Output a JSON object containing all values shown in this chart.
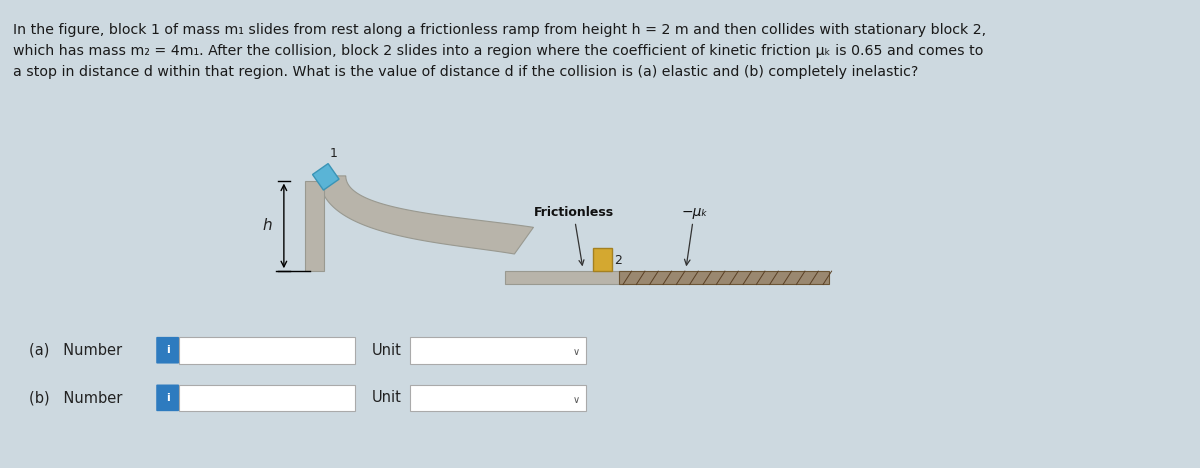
{
  "bg_color": "#cdd9e0",
  "text_color": "#1a1a1a",
  "paragraph_line1": "In the figure, block 1 of mass m₁ slides from rest along a frictionless ramp from height h = 2 m and then collides with stationary block 2,",
  "paragraph_line2": "which has mass m₂ = 4m₁. After the collision, block 2 slides into a region where the coefficient of kinetic friction μₖ is 0.65 and comes to",
  "paragraph_line3": "a stop in distance d within that region. What is the value of distance d if the collision is (a) elastic and (b) completely inelastic?",
  "ramp_face_color": "#b8b4aa",
  "ramp_edge_color": "#999990",
  "block1_color": "#5ab4d6",
  "block1_edge": "#3a94b6",
  "block2_color": "#d4a830",
  "block2_edge": "#a48020",
  "friction_color": "#9a8870",
  "label_frictionless": "Frictionless",
  "label_mu": "−μₖ",
  "label_h": "h",
  "label_1": "1",
  "label_2": "2",
  "info_btn_color": "#2e7bbf",
  "info_btn_text": "i",
  "label_a": "(a)   Number",
  "label_b": "(b)   Number",
  "label_unit": "Unit",
  "chevron": "∨"
}
